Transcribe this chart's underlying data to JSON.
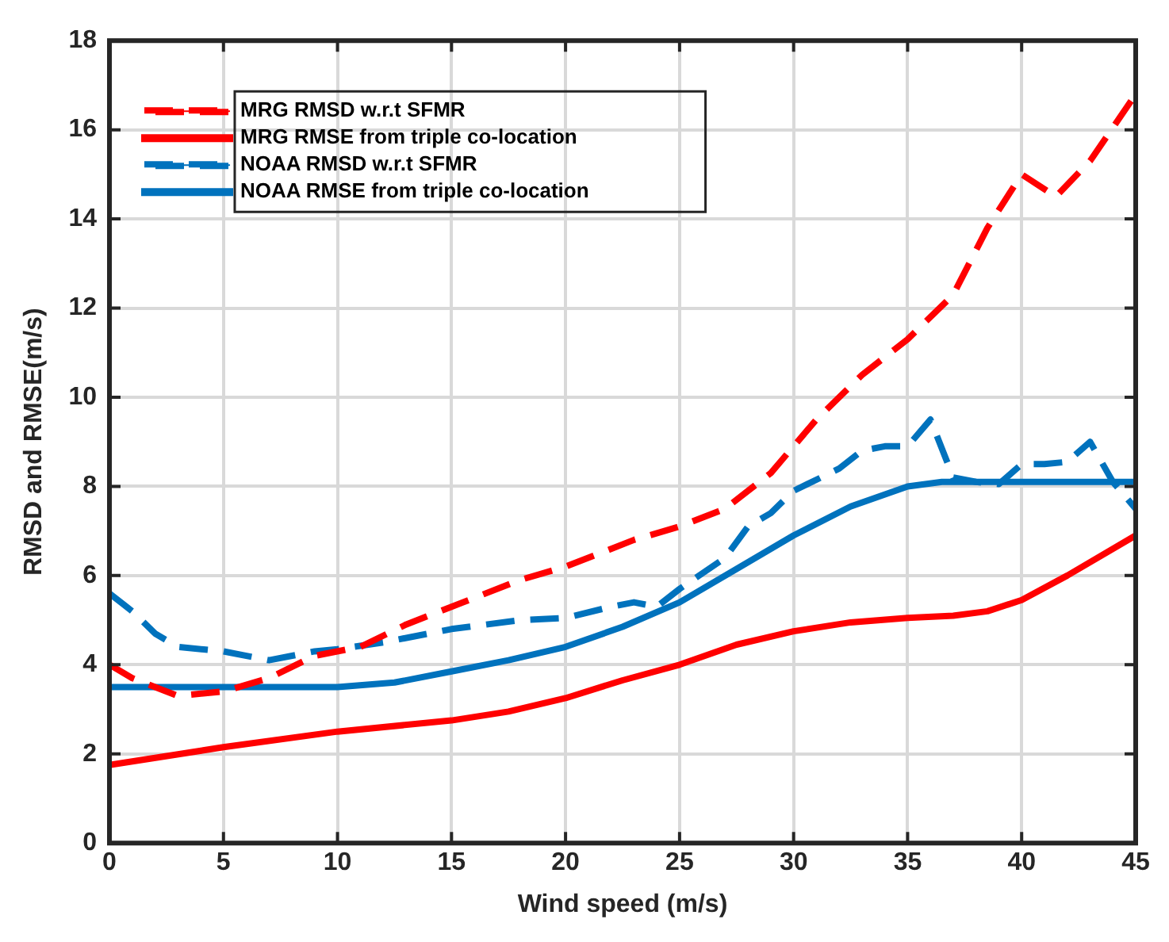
{
  "chart_data": {
    "type": "line",
    "xlabel": "Wind speed (m/s)",
    "ylabel": "RMSD and RMSE(m/s)",
    "xlim": [
      0,
      45
    ],
    "xticks": [
      0,
      5,
      10,
      15,
      20,
      25,
      30,
      35,
      40,
      45
    ],
    "ylim": [
      0,
      18
    ],
    "yticks": [
      0,
      2,
      4,
      6,
      8,
      10,
      12,
      14,
      16,
      18
    ],
    "grid": true,
    "legend": "top left",
    "marker": "none",
    "series": [
      {
        "name": "MRG RMSD w.r.t SFMR",
        "color": "#ff0000",
        "line_style": "dashed",
        "x": [
          0,
          1,
          3,
          5,
          7,
          9,
          11,
          13,
          15,
          18,
          20,
          23,
          25,
          27,
          29,
          31,
          33,
          35,
          37,
          38.5,
          40,
          41.5,
          43,
          45
        ],
        "values": [
          4.0,
          3.7,
          3.3,
          3.4,
          3.7,
          4.2,
          4.4,
          4.9,
          5.3,
          5.9,
          6.2,
          6.8,
          7.1,
          7.5,
          8.3,
          9.5,
          10.5,
          11.3,
          12.3,
          13.8,
          15.0,
          14.5,
          15.3,
          16.8
        ]
      },
      {
        "name": "MRG RMSE from triple co-location",
        "color": "#ff0000",
        "line_style": "solid",
        "x": [
          0,
          5,
          10,
          15,
          17.5,
          20,
          22.5,
          25,
          27.5,
          30,
          32.5,
          35,
          37,
          38.5,
          40,
          42,
          45
        ],
        "values": [
          1.75,
          2.15,
          2.5,
          2.75,
          2.95,
          3.25,
          3.65,
          4.0,
          4.45,
          4.75,
          4.95,
          5.05,
          5.1,
          5.2,
          5.45,
          6.0,
          6.9
        ]
      },
      {
        "name": "NOAA RMSD w.r.t SFMR",
        "color": "#0072bd",
        "line_style": "dashed",
        "x": [
          0,
          1,
          2,
          3,
          5,
          7,
          9,
          10,
          12,
          15,
          18,
          20,
          22,
          23,
          24,
          25,
          27,
          28,
          29,
          30,
          32,
          33,
          34,
          35,
          36,
          37,
          38,
          39,
          40,
          41,
          42,
          43,
          44,
          45
        ],
        "values": [
          5.6,
          5.2,
          4.7,
          4.4,
          4.3,
          4.1,
          4.3,
          4.35,
          4.5,
          4.8,
          5.0,
          5.05,
          5.3,
          5.4,
          5.3,
          5.7,
          6.4,
          7.1,
          7.4,
          7.9,
          8.4,
          8.8,
          8.9,
          8.9,
          9.5,
          8.2,
          8.1,
          8.05,
          8.5,
          8.5,
          8.55,
          9.0,
          8.1,
          7.5
        ]
      },
      {
        "name": "NOAA RMSE from triple co-location",
        "color": "#0072bd",
        "line_style": "solid",
        "x": [
          0,
          10,
          12.5,
          15,
          17.5,
          20,
          22.5,
          25,
          27.5,
          30,
          32.5,
          35,
          36.5,
          45
        ],
        "values": [
          3.5,
          3.5,
          3.6,
          3.85,
          4.1,
          4.4,
          4.85,
          5.4,
          6.15,
          6.9,
          7.55,
          8.0,
          8.1,
          8.1
        ]
      }
    ]
  }
}
